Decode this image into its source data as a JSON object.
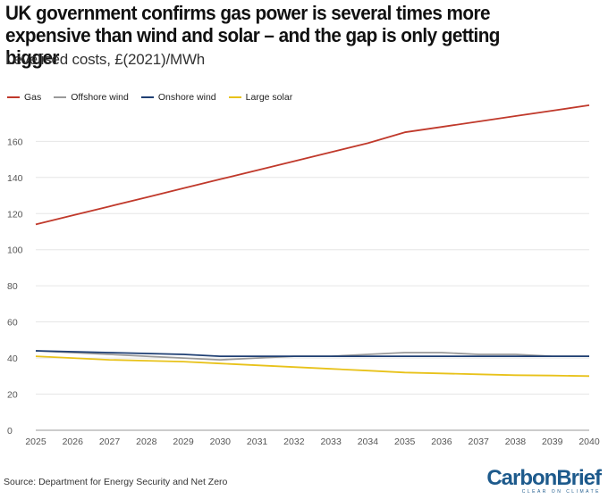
{
  "chart_data": {
    "type": "line",
    "title": "UK government confirms gas power is several times more expensive than wind and solar – and the gap is only getting bigger",
    "subtitle": "Levelised costs, £(2021)/MWh",
    "xlabel": "",
    "ylabel": "",
    "x": [
      2025,
      2026,
      2027,
      2028,
      2029,
      2030,
      2031,
      2032,
      2033,
      2034,
      2035,
      2036,
      2037,
      2038,
      2039,
      2040
    ],
    "ylim": [
      0,
      175
    ],
    "yticks": [
      0,
      20,
      40,
      60,
      80,
      100,
      120,
      140,
      160
    ],
    "grid": true,
    "legend_position": "top-left",
    "series": [
      {
        "name": "Gas",
        "color": "#c0392b",
        "values": [
          114,
          119,
          124,
          129,
          134,
          139,
          144,
          149,
          154,
          159,
          165,
          168,
          171,
          174,
          177,
          180
        ]
      },
      {
        "name": "Offshore wind",
        "color": "#9a9a9a",
        "values": [
          44,
          43,
          42,
          41,
          40,
          39,
          40,
          41,
          41,
          42,
          43,
          43,
          42,
          42,
          41,
          41
        ]
      },
      {
        "name": "Onshore wind",
        "color": "#1f3f73",
        "values": [
          44,
          43.5,
          43,
          42.5,
          42,
          41,
          41,
          41,
          41,
          41,
          41,
          41,
          41,
          41,
          41,
          41
        ]
      },
      {
        "name": "Large solar",
        "color": "#e8c21a",
        "values": [
          41,
          40,
          39,
          38.5,
          38,
          37,
          36,
          35,
          34,
          33,
          32,
          31.5,
          31,
          30.5,
          30.3,
          30
        ]
      }
    ]
  },
  "source": "Source: Department for Energy Security and Net Zero",
  "brand": {
    "name": "CarbonBrief",
    "tagline": "CLEAR ON CLIMATE",
    "color": "#1d5a8c"
  }
}
